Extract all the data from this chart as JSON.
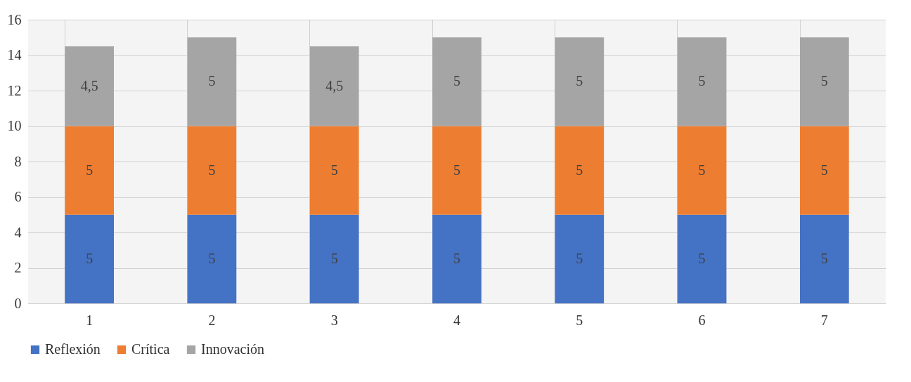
{
  "chart_data": {
    "type": "bar",
    "stacked": true,
    "categories": [
      "1",
      "2",
      "3",
      "4",
      "5",
      "6",
      "7"
    ],
    "series": [
      {
        "name": "Reflexión",
        "color": "#4472c4",
        "values": [
          5,
          5,
          5,
          5,
          5,
          5,
          5
        ],
        "value_labels": [
          "5",
          "5",
          "5",
          "5",
          "5",
          "5",
          "5"
        ]
      },
      {
        "name": "Crítica",
        "color": "#ed7d31",
        "values": [
          5,
          5,
          5,
          5,
          5,
          5,
          5
        ],
        "value_labels": [
          "5",
          "5",
          "5",
          "5",
          "5",
          "5",
          "5"
        ]
      },
      {
        "name": "Innovación",
        "color": "#a5a5a5",
        "values": [
          4.5,
          5,
          4.5,
          5,
          5,
          5,
          5
        ],
        "value_labels": [
          "4,5",
          "5",
          "4,5",
          "5",
          "5",
          "5",
          "5"
        ]
      }
    ],
    "ylim": [
      0,
      16
    ],
    "yticks": [
      0,
      2,
      4,
      6,
      8,
      10,
      12,
      14,
      16
    ],
    "grid": true,
    "legend": "bottom"
  }
}
